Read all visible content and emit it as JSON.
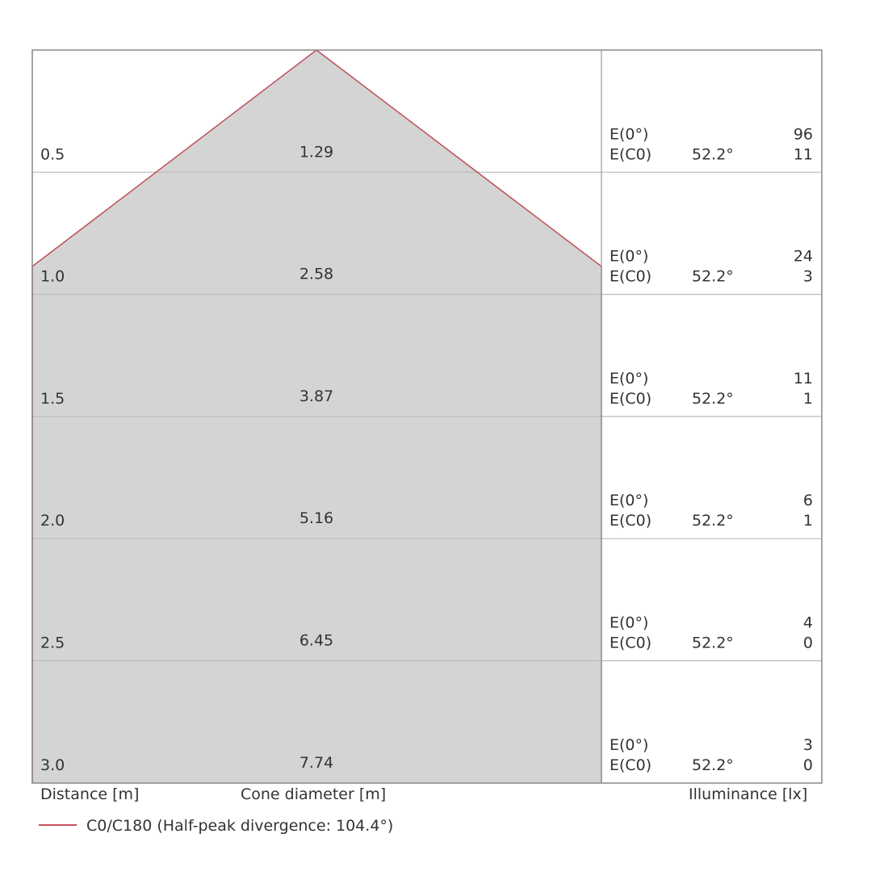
{
  "labels": {
    "e0": "E(0°)",
    "ec0": "E(C0)"
  },
  "rows": [
    {
      "distance": "0.5",
      "diameter": "1.29",
      "e0": "96",
      "angle": "52.2°",
      "ec0": "11"
    },
    {
      "distance": "1.0",
      "diameter": "2.58",
      "e0": "24",
      "angle": "52.2°",
      "ec0": "3"
    },
    {
      "distance": "1.5",
      "diameter": "3.87",
      "e0": "11",
      "angle": "52.2°",
      "ec0": "1"
    },
    {
      "distance": "2.0",
      "diameter": "5.16",
      "e0": "6",
      "angle": "52.2°",
      "ec0": "1"
    },
    {
      "distance": "2.5",
      "diameter": "6.45",
      "e0": "4",
      "angle": "52.2°",
      "ec0": "0"
    },
    {
      "distance": "3.0",
      "diameter": "7.74",
      "e0": "3",
      "angle": "52.2°",
      "ec0": "0"
    }
  ],
  "axes": {
    "distance": "Distance [m]",
    "diameter": "Cone diameter [m]",
    "illuminance": "Illuminance [lx]"
  },
  "legend": "C0/C180 (Half-peak divergence: 104.4°)"
}
